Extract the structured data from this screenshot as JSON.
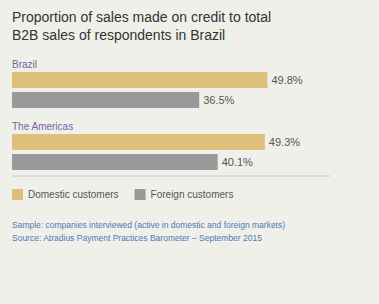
{
  "chart_data": {
    "type": "bar",
    "orientation": "horizontal",
    "title": "Proportion of sales made on credit to total\nB2B sales of respondents in Brazil",
    "categories": [
      "Brazil",
      "The Americas"
    ],
    "series": [
      {
        "name": "Domestic customers",
        "color": "#dfc07a",
        "values": [
          49.8,
          49.3
        ],
        "value_labels": [
          "49.8%",
          "49.3%"
        ]
      },
      {
        "name": "Foreign customers",
        "color": "#999999",
        "values": [
          36.5,
          40.1
        ],
        "value_labels": [
          "36.5%",
          "40.1%"
        ]
      }
    ],
    "xlim": [
      0,
      62
    ],
    "data_labels": true,
    "tick_labels": false,
    "grid": false,
    "legend": "bottom",
    "annotations": [
      "Sample: companies interviewed (active in domestic and foreign markets)\nSource: Atradius Payment Practices Barometer – September 2015"
    ]
  }
}
